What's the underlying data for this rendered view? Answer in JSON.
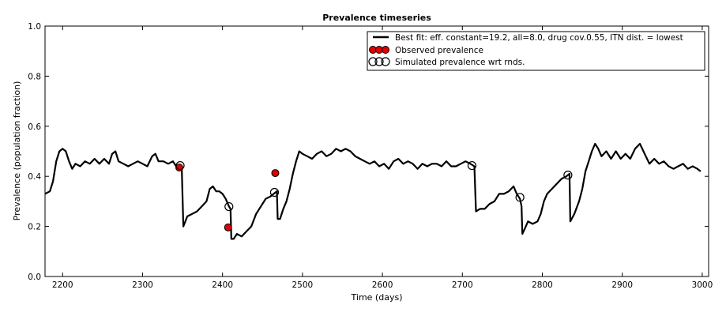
{
  "chart_data": {
    "type": "line",
    "title": "Prevalence timeseries",
    "xlabel": "Time (days)",
    "ylabel": "Prevalence (population fraction)",
    "xlim": [
      2178,
      3008
    ],
    "ylim": [
      0.0,
      1.0
    ],
    "xticks": [
      2200,
      2300,
      2400,
      2500,
      2600,
      2700,
      2800,
      2900,
      3000
    ],
    "yticks": [
      0.0,
      0.2,
      0.4,
      0.6,
      0.8,
      1.0
    ],
    "xtick_labels": [
      "2200",
      "2300",
      "2400",
      "2500",
      "2600",
      "2700",
      "2800",
      "2900",
      "3000"
    ],
    "ytick_labels": [
      "0.0",
      "0.2",
      "0.4",
      "0.6",
      "0.8",
      "1.0"
    ],
    "grid": false,
    "legend_position": "top-right",
    "series": [
      {
        "name": "Best fit: eff. constant=19.2, all=8.0, drug cov.0.55, ITN dist. = lowest",
        "color": "#000000",
        "points": [
          [
            2178,
            0.33
          ],
          [
            2184,
            0.34
          ],
          [
            2188,
            0.38
          ],
          [
            2192,
            0.46
          ],
          [
            2196,
            0.5
          ],
          [
            2200,
            0.51
          ],
          [
            2204,
            0.5
          ],
          [
            2208,
            0.46
          ],
          [
            2212,
            0.43
          ],
          [
            2216,
            0.45
          ],
          [
            2222,
            0.44
          ],
          [
            2228,
            0.46
          ],
          [
            2234,
            0.45
          ],
          [
            2240,
            0.47
          ],
          [
            2246,
            0.45
          ],
          [
            2252,
            0.47
          ],
          [
            2258,
            0.45
          ],
          [
            2262,
            0.49
          ],
          [
            2266,
            0.5
          ],
          [
            2270,
            0.46
          ],
          [
            2276,
            0.45
          ],
          [
            2282,
            0.44
          ],
          [
            2288,
            0.45
          ],
          [
            2294,
            0.46
          ],
          [
            2300,
            0.45
          ],
          [
            2306,
            0.44
          ],
          [
            2312,
            0.48
          ],
          [
            2316,
            0.49
          ],
          [
            2320,
            0.46
          ],
          [
            2326,
            0.46
          ],
          [
            2332,
            0.45
          ],
          [
            2338,
            0.46
          ],
          [
            2344,
            0.43
          ],
          [
            2349,
            0.43
          ],
          [
            2351,
            0.2
          ],
          [
            2356,
            0.24
          ],
          [
            2362,
            0.25
          ],
          [
            2368,
            0.26
          ],
          [
            2374,
            0.28
          ],
          [
            2380,
            0.3
          ],
          [
            2384,
            0.35
          ],
          [
            2388,
            0.36
          ],
          [
            2392,
            0.34
          ],
          [
            2396,
            0.34
          ],
          [
            2400,
            0.33
          ],
          [
            2404,
            0.31
          ],
          [
            2408,
            0.28
          ],
          [
            2410,
            0.27
          ],
          [
            2411,
            0.15
          ],
          [
            2414,
            0.15
          ],
          [
            2418,
            0.17
          ],
          [
            2424,
            0.16
          ],
          [
            2430,
            0.18
          ],
          [
            2436,
            0.2
          ],
          [
            2442,
            0.25
          ],
          [
            2448,
            0.28
          ],
          [
            2454,
            0.31
          ],
          [
            2460,
            0.32
          ],
          [
            2464,
            0.33
          ],
          [
            2468,
            0.34
          ],
          [
            2469,
            0.23
          ],
          [
            2472,
            0.23
          ],
          [
            2476,
            0.27
          ],
          [
            2480,
            0.3
          ],
          [
            2484,
            0.35
          ],
          [
            2488,
            0.41
          ],
          [
            2492,
            0.46
          ],
          [
            2496,
            0.5
          ],
          [
            2500,
            0.49
          ],
          [
            2506,
            0.48
          ],
          [
            2512,
            0.47
          ],
          [
            2518,
            0.49
          ],
          [
            2524,
            0.5
          ],
          [
            2530,
            0.48
          ],
          [
            2536,
            0.49
          ],
          [
            2542,
            0.51
          ],
          [
            2548,
            0.5
          ],
          [
            2554,
            0.51
          ],
          [
            2560,
            0.5
          ],
          [
            2566,
            0.48
          ],
          [
            2572,
            0.47
          ],
          [
            2578,
            0.46
          ],
          [
            2584,
            0.45
          ],
          [
            2590,
            0.46
          ],
          [
            2596,
            0.44
          ],
          [
            2602,
            0.45
          ],
          [
            2608,
            0.43
          ],
          [
            2614,
            0.46
          ],
          [
            2620,
            0.47
          ],
          [
            2626,
            0.45
          ],
          [
            2632,
            0.46
          ],
          [
            2638,
            0.45
          ],
          [
            2644,
            0.43
          ],
          [
            2650,
            0.45
          ],
          [
            2656,
            0.44
          ],
          [
            2662,
            0.45
          ],
          [
            2668,
            0.45
          ],
          [
            2674,
            0.44
          ],
          [
            2680,
            0.46
          ],
          [
            2686,
            0.44
          ],
          [
            2692,
            0.44
          ],
          [
            2698,
            0.45
          ],
          [
            2704,
            0.46
          ],
          [
            2710,
            0.45
          ],
          [
            2715,
            0.44
          ],
          [
            2717,
            0.26
          ],
          [
            2722,
            0.27
          ],
          [
            2728,
            0.27
          ],
          [
            2734,
            0.29
          ],
          [
            2740,
            0.3
          ],
          [
            2746,
            0.33
          ],
          [
            2752,
            0.33
          ],
          [
            2758,
            0.34
          ],
          [
            2764,
            0.36
          ],
          [
            2768,
            0.33
          ],
          [
            2772,
            0.31
          ],
          [
            2774,
            0.28
          ],
          [
            2775,
            0.17
          ],
          [
            2778,
            0.19
          ],
          [
            2782,
            0.22
          ],
          [
            2788,
            0.21
          ],
          [
            2794,
            0.22
          ],
          [
            2798,
            0.25
          ],
          [
            2802,
            0.3
          ],
          [
            2806,
            0.33
          ],
          [
            2812,
            0.35
          ],
          [
            2818,
            0.37
          ],
          [
            2824,
            0.39
          ],
          [
            2830,
            0.4
          ],
          [
            2834,
            0.41
          ],
          [
            2835,
            0.22
          ],
          [
            2840,
            0.25
          ],
          [
            2846,
            0.3
          ],
          [
            2850,
            0.35
          ],
          [
            2854,
            0.42
          ],
          [
            2858,
            0.46
          ],
          [
            2862,
            0.5
          ],
          [
            2866,
            0.53
          ],
          [
            2870,
            0.51
          ],
          [
            2874,
            0.48
          ],
          [
            2880,
            0.5
          ],
          [
            2886,
            0.47
          ],
          [
            2892,
            0.5
          ],
          [
            2898,
            0.47
          ],
          [
            2904,
            0.49
          ],
          [
            2910,
            0.47
          ],
          [
            2916,
            0.51
          ],
          [
            2922,
            0.53
          ],
          [
            2928,
            0.49
          ],
          [
            2934,
            0.45
          ],
          [
            2940,
            0.47
          ],
          [
            2946,
            0.45
          ],
          [
            2952,
            0.46
          ],
          [
            2958,
            0.44
          ],
          [
            2964,
            0.43
          ],
          [
            2970,
            0.44
          ],
          [
            2976,
            0.45
          ],
          [
            2982,
            0.43
          ],
          [
            2988,
            0.44
          ],
          [
            2994,
            0.43
          ],
          [
            2998,
            0.42
          ]
        ]
      }
    ],
    "observed": {
      "name": "Observed prevalence",
      "color": "#e00000",
      "points": [
        [
          2346,
          0.435
        ],
        [
          2407,
          0.196
        ],
        [
          2466,
          0.413
        ]
      ]
    },
    "simulated": {
      "name": "Simulated prevalence wrt rnds.",
      "points": [
        [
          2347,
          0.443
        ],
        [
          2408,
          0.279
        ],
        [
          2465,
          0.336
        ],
        [
          2712,
          0.443
        ],
        [
          2772,
          0.316
        ],
        [
          2832,
          0.405
        ]
      ]
    }
  }
}
